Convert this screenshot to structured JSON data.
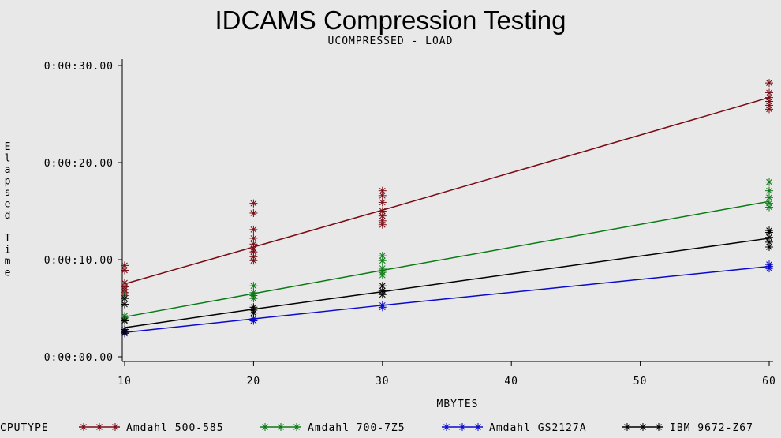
{
  "chart_data": {
    "type": "scatter",
    "title": "IDCAMS Compression Testing",
    "subtitle": "UCOMPRESSED - LOAD",
    "xlabel": "MBYTES",
    "ylabel": "Elapsed Time",
    "xlim": [
      10,
      60
    ],
    "ylim": [
      0,
      30
    ],
    "x_ticks": [
      10,
      20,
      30,
      40,
      50,
      60
    ],
    "x_tick_labels": [
      "10",
      "20",
      "30",
      "40",
      "50",
      "60"
    ],
    "y_ticks": [
      0,
      10,
      20,
      30
    ],
    "y_tick_labels": [
      "0:00:00.00",
      "0:00:10.00",
      "0:00:20.00",
      "0:00:30.00"
    ],
    "legend_title": "CPUTYPE",
    "legend_position": "bottom",
    "grid": false,
    "series": [
      {
        "name": "Amdahl 500-585",
        "color": "#7a0a14",
        "fit": [
          [
            10,
            7.5
          ],
          [
            20,
            11.3
          ],
          [
            30,
            15.1
          ],
          [
            60,
            26.7
          ]
        ],
        "points": [
          [
            10,
            6.6
          ],
          [
            10,
            6.9
          ],
          [
            10,
            7.2
          ],
          [
            10,
            7.6
          ],
          [
            10,
            8.9
          ],
          [
            10,
            9.4
          ],
          [
            20,
            9.9
          ],
          [
            20,
            10.3
          ],
          [
            20,
            10.8
          ],
          [
            20,
            11.1
          ],
          [
            20,
            11.6
          ],
          [
            20,
            12.2
          ],
          [
            20,
            13.1
          ],
          [
            20,
            14.8
          ],
          [
            20,
            15.8
          ],
          [
            30,
            13.6
          ],
          [
            30,
            14.0
          ],
          [
            30,
            14.5
          ],
          [
            30,
            15.0
          ],
          [
            30,
            15.9
          ],
          [
            30,
            16.6
          ],
          [
            30,
            17.1
          ],
          [
            60,
            25.5
          ],
          [
            60,
            25.9
          ],
          [
            60,
            26.3
          ],
          [
            60,
            26.7
          ],
          [
            60,
            27.2
          ],
          [
            60,
            28.2
          ]
        ]
      },
      {
        "name": "Amdahl 700-7Z5",
        "color": "#0a7a14",
        "fit": [
          [
            10,
            4.1
          ],
          [
            20,
            6.5
          ],
          [
            30,
            8.9
          ],
          [
            60,
            16.0
          ]
        ],
        "points": [
          [
            10,
            3.8
          ],
          [
            10,
            4.0
          ],
          [
            10,
            4.2
          ],
          [
            10,
            6.3
          ],
          [
            20,
            6.0
          ],
          [
            20,
            6.3
          ],
          [
            20,
            6.6
          ],
          [
            20,
            7.3
          ],
          [
            30,
            8.4
          ],
          [
            30,
            8.7
          ],
          [
            30,
            9.1
          ],
          [
            30,
            9.9
          ],
          [
            30,
            10.4
          ],
          [
            60,
            15.4
          ],
          [
            60,
            15.8
          ],
          [
            60,
            16.4
          ],
          [
            60,
            17.1
          ],
          [
            60,
            18.0
          ]
        ]
      },
      {
        "name": "Amdahl GS2127A",
        "color": "#0a0acd",
        "fit": [
          [
            10,
            2.5
          ],
          [
            20,
            3.9
          ],
          [
            30,
            5.3
          ],
          [
            60,
            9.3
          ]
        ],
        "points": [
          [
            10,
            2.4
          ],
          [
            10,
            2.6
          ],
          [
            20,
            3.7
          ],
          [
            20,
            3.9
          ],
          [
            30,
            5.1
          ],
          [
            30,
            5.3
          ],
          [
            60,
            9.1
          ],
          [
            60,
            9.3
          ],
          [
            60,
            9.5
          ]
        ]
      },
      {
        "name": "IBM 9672-Z67",
        "color": "#000000",
        "fit": [
          [
            10,
            3.0
          ],
          [
            20,
            4.9
          ],
          [
            30,
            6.7
          ],
          [
            60,
            12.2
          ]
        ],
        "points": [
          [
            10,
            2.5
          ],
          [
            10,
            2.8
          ],
          [
            10,
            3.7
          ],
          [
            10,
            5.4
          ],
          [
            10,
            6.0
          ],
          [
            20,
            4.5
          ],
          [
            20,
            4.8
          ],
          [
            20,
            5.1
          ],
          [
            30,
            6.4
          ],
          [
            30,
            6.8
          ],
          [
            30,
            7.3
          ],
          [
            60,
            11.3
          ],
          [
            60,
            11.8
          ],
          [
            60,
            12.3
          ],
          [
            60,
            12.8
          ],
          [
            60,
            13.0
          ]
        ]
      }
    ]
  }
}
